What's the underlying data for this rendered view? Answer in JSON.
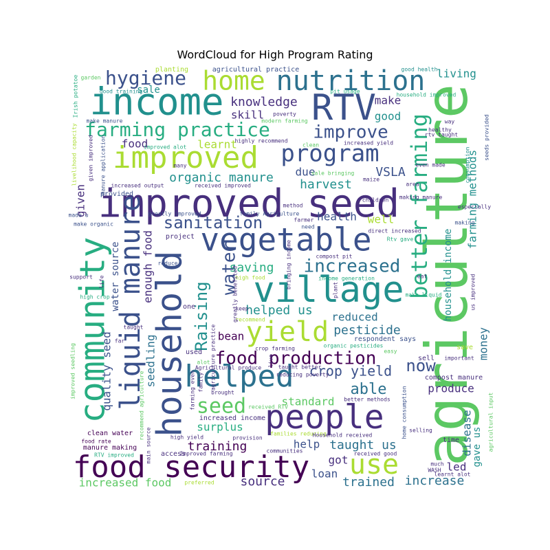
{
  "chart_data": {
    "type": "wordcloud",
    "title": "WordCloud for High Program Rating",
    "palette": [
      "#440154",
      "#472f7d",
      "#3b518b",
      "#2c718e",
      "#21908d",
      "#27ad81",
      "#5cc863",
      "#aadc32",
      "#fde725"
    ],
    "words": [
      {
        "text": "agriculture",
        "weight": 100,
        "color": "#5cc863"
      },
      {
        "text": "improved seed",
        "weight": 92,
        "color": "#472f7d"
      },
      {
        "text": "income",
        "weight": 90,
        "color": "#21908d"
      },
      {
        "text": "household",
        "weight": 88,
        "color": "#3b518b"
      },
      {
        "text": "community",
        "weight": 86,
        "color": "#27ad81"
      },
      {
        "text": "village",
        "weight": 84,
        "color": "#21908d"
      },
      {
        "text": "people",
        "weight": 80,
        "color": "#472f7d"
      },
      {
        "text": "RTV",
        "weight": 78,
        "color": "#3b518b"
      },
      {
        "text": "vegetable",
        "weight": 76,
        "color": "#3b518b"
      },
      {
        "text": "food security",
        "weight": 74,
        "color": "#440154"
      },
      {
        "text": "improved",
        "weight": 72,
        "color": "#aadc32"
      },
      {
        "text": "helped",
        "weight": 70,
        "color": "#2c718e"
      },
      {
        "text": "liquid manure",
        "weight": 68,
        "color": "#3b518b"
      },
      {
        "text": "nutrition",
        "weight": 66,
        "color": "#2c718e"
      },
      {
        "text": "program",
        "weight": 64,
        "color": "#3b518b"
      },
      {
        "text": "home",
        "weight": 62,
        "color": "#aadc32"
      },
      {
        "text": "yield",
        "weight": 60,
        "color": "#aadc32"
      },
      {
        "text": "better farming",
        "weight": 58,
        "color": "#27ad81"
      },
      {
        "text": "use",
        "weight": 56,
        "color": "#aadc32"
      },
      {
        "text": "farming practice",
        "weight": 54,
        "color": "#27ad81"
      },
      {
        "text": "food production",
        "weight": 52,
        "color": "#440154"
      },
      {
        "text": "hygiene",
        "weight": 50,
        "color": "#3b518b"
      },
      {
        "text": "seed",
        "weight": 48,
        "color": "#5cc863"
      },
      {
        "text": "sanitation",
        "weight": 46,
        "color": "#3b518b"
      },
      {
        "text": "increased",
        "weight": 44,
        "color": "#2c718e"
      },
      {
        "text": "improve",
        "weight": 42,
        "color": "#3b518b"
      },
      {
        "text": "water",
        "weight": 41,
        "color": "#3b518b"
      },
      {
        "text": "Raising",
        "weight": 40,
        "color": "#21908d"
      },
      {
        "text": "now",
        "weight": 39,
        "color": "#3b518b"
      },
      {
        "text": "able",
        "weight": 38,
        "color": "#2c718e"
      },
      {
        "text": "crop yield",
        "weight": 37,
        "color": "#3b518b"
      },
      {
        "text": "knowledge",
        "weight": 36,
        "color": "#472f7d"
      },
      {
        "text": "make",
        "weight": 35,
        "color": "#472f7d"
      },
      {
        "text": "good",
        "weight": 34,
        "color": "#21908d"
      },
      {
        "text": "skill",
        "weight": 33,
        "color": "#472f7d"
      },
      {
        "text": "organic manure",
        "weight": 32,
        "color": "#21908d"
      },
      {
        "text": "harvest",
        "weight": 31,
        "color": "#21908d"
      },
      {
        "text": "VSLA",
        "weight": 30,
        "color": "#3b518b"
      },
      {
        "text": "due",
        "weight": 30,
        "color": "#3b518b"
      },
      {
        "text": "health",
        "weight": 29,
        "color": "#3b518b"
      },
      {
        "text": "well",
        "weight": 29,
        "color": "#aadc32"
      },
      {
        "text": "saving",
        "weight": 28,
        "color": "#27ad81"
      },
      {
        "text": "helped us",
        "weight": 28,
        "color": "#21908d"
      },
      {
        "text": "reduced",
        "weight": 27,
        "color": "#2c718e"
      },
      {
        "text": "pesticide",
        "weight": 27,
        "color": "#2c718e"
      },
      {
        "text": "bean",
        "weight": 26,
        "color": "#440154"
      },
      {
        "text": "training",
        "weight": 26,
        "color": "#440154"
      },
      {
        "text": "surplus",
        "weight": 25,
        "color": "#27ad81"
      },
      {
        "text": "help",
        "weight": 25,
        "color": "#3b518b"
      },
      {
        "text": "taught us",
        "weight": 25,
        "color": "#2c718e"
      },
      {
        "text": "source",
        "weight": 24,
        "color": "#472f7d"
      },
      {
        "text": "loan",
        "weight": 24,
        "color": "#3b518b"
      },
      {
        "text": "trained",
        "weight": 24,
        "color": "#2c718e"
      },
      {
        "text": "increase",
        "weight": 24,
        "color": "#2c718e"
      },
      {
        "text": "increased food",
        "weight": 23,
        "color": "#5cc863"
      },
      {
        "text": "got",
        "weight": 23,
        "color": "#472f7d"
      },
      {
        "text": "produce",
        "weight": 22,
        "color": "#472f7d"
      },
      {
        "text": "standard",
        "weight": 22,
        "color": "#5cc863"
      },
      {
        "text": "living",
        "weight": 22,
        "color": "#21908d"
      },
      {
        "text": "learnt",
        "weight": 21,
        "color": "#aadc32"
      },
      {
        "text": "food",
        "weight": 21,
        "color": "#472f7d"
      },
      {
        "text": "sale",
        "weight": 21,
        "color": "#21908d"
      },
      {
        "text": "given",
        "weight": 20,
        "color": "#472f7d"
      },
      {
        "text": "quality seed",
        "weight": 20,
        "color": "#3b518b"
      },
      {
        "text": "water source",
        "weight": 20,
        "color": "#3b518b"
      },
      {
        "text": "enough food",
        "weight": 20,
        "color": "#472f7d"
      },
      {
        "text": "seedling",
        "weight": 19,
        "color": "#2c718e"
      },
      {
        "text": "farming methods",
        "weight": 19,
        "color": "#21908d"
      },
      {
        "text": "household income",
        "weight": 18,
        "color": "#21908d"
      },
      {
        "text": "money",
        "weight": 18,
        "color": "#2c718e"
      },
      {
        "text": "disease",
        "weight": 18,
        "color": "#2c718e"
      },
      {
        "text": "gave us",
        "weight": 17,
        "color": "#21908d"
      },
      {
        "text": "led",
        "weight": 16,
        "color": "#472f7d"
      },
      {
        "text": "planting",
        "weight": 10,
        "color": "#aadc32"
      },
      {
        "text": "agricultural practice",
        "weight": 10,
        "color": "#3b518b"
      },
      {
        "text": "good health",
        "weight": 10,
        "color": "#21908d"
      },
      {
        "text": "household improved",
        "weight": 10,
        "color": "#27ad81"
      },
      {
        "text": "Irish potatoe",
        "weight": 10,
        "color": "#27ad81"
      },
      {
        "text": "garden",
        "weight": 10,
        "color": "#5cc863"
      },
      {
        "text": "good training",
        "weight": 10,
        "color": "#21908d"
      },
      {
        "text": "pit usage",
        "weight": 10,
        "color": "#27ad81"
      },
      {
        "text": "poverty",
        "weight": 10,
        "color": "#472f7d"
      },
      {
        "text": "modern farming",
        "weight": 10,
        "color": "#5cc863"
      },
      {
        "text": "make manure",
        "weight": 10,
        "color": "#3b518b"
      },
      {
        "text": "highly recommend",
        "weight": 10,
        "color": "#472f7d"
      },
      {
        "text": "increased yield",
        "weight": 10,
        "color": "#472f7d"
      },
      {
        "text": "way",
        "weight": 10,
        "color": "#472f7d"
      },
      {
        "text": "healthy",
        "weight": 10,
        "color": "#472f7d"
      },
      {
        "text": "rtv taught",
        "weight": 10,
        "color": "#472f7d"
      },
      {
        "text": "seeds provided",
        "weight": 10,
        "color": "#3b518b"
      },
      {
        "text": "pig",
        "weight": 10,
        "color": "#5cc863"
      },
      {
        "text": "improved alot",
        "weight": 10,
        "color": "#27ad81"
      },
      {
        "text": "clean",
        "weight": 10,
        "color": "#5cc863"
      },
      {
        "text": "many",
        "weight": 10,
        "color": "#472f7d"
      },
      {
        "text": "even made",
        "weight": 10,
        "color": "#472f7d"
      },
      {
        "text": "given improved",
        "weight": 10,
        "color": "#472f7d"
      },
      {
        "text": "manure application",
        "weight": 10,
        "color": "#3b518b"
      },
      {
        "text": "sale bringing",
        "weight": 10,
        "color": "#5cc863"
      },
      {
        "text": "maize",
        "weight": 10,
        "color": "#472f7d"
      },
      {
        "text": "area",
        "weight": 10,
        "color": "#472f7d"
      },
      {
        "text": "consumption",
        "weight": 10,
        "color": "#21908d"
      },
      {
        "text": "increased output",
        "weight": 10,
        "color": "#472f7d"
      },
      {
        "text": "received improved",
        "weight": 10,
        "color": "#472f7d"
      },
      {
        "text": "making manure",
        "weight": 10,
        "color": "#472f7d"
      },
      {
        "text": "especially",
        "weight": 10,
        "color": "#472f7d"
      },
      {
        "text": "provided",
        "weight": 10,
        "color": "#3b518b"
      },
      {
        "text": "method",
        "weight": 10,
        "color": "#472f7d"
      },
      {
        "text": "greatly improved",
        "weight": 10,
        "color": "#3b518b"
      },
      {
        "text": "family Agriculture",
        "weight": 10,
        "color": "#3b518b"
      },
      {
        "text": "make organic",
        "weight": 10,
        "color": "#3b518b"
      },
      {
        "text": "made u",
        "weight": 10,
        "color": "#3b518b"
      },
      {
        "text": "making",
        "weight": 10,
        "color": "#3b518b"
      },
      {
        "text": "need",
        "weight": 10,
        "color": "#3b518b"
      },
      {
        "text": "project",
        "weight": 10,
        "color": "#472f7d"
      },
      {
        "text": "direct increased",
        "weight": 10,
        "color": "#472f7d"
      },
      {
        "text": "Rtv gave",
        "weight": 10,
        "color": "#27ad81"
      },
      {
        "text": "reduce",
        "weight": 10,
        "color": "#3b518b"
      },
      {
        "text": "compost pit",
        "weight": 10,
        "color": "#472f7d"
      },
      {
        "text": "income generation",
        "weight": 10,
        "color": "#27ad81"
      },
      {
        "text": "eat",
        "weight": 10,
        "color": "#472f7d"
      },
      {
        "text": "support",
        "weight": 10,
        "color": "#472f7d"
      },
      {
        "text": "life",
        "weight": 10,
        "color": "#472f7d"
      },
      {
        "text": "high food",
        "weight": 10,
        "color": "#aadc32"
      },
      {
        "text": "make liquid",
        "weight": 10,
        "color": "#27ad81"
      },
      {
        "text": "high crop",
        "weight": 10,
        "color": "#27ad81"
      },
      {
        "text": "plant",
        "weight": 10,
        "color": "#472f7d"
      },
      {
        "text": "us improved",
        "weight": 10,
        "color": "#472f7d"
      },
      {
        "text": "one",
        "weight": 10,
        "color": "#472f7d"
      },
      {
        "text": "keep",
        "weight": 10,
        "color": "#472f7d"
      },
      {
        "text": "taught",
        "weight": 10,
        "color": "#472f7d"
      },
      {
        "text": "recommend",
        "weight": 10,
        "color": "#aadc32"
      },
      {
        "text": "respondent says",
        "weight": 10,
        "color": "#3b518b"
      },
      {
        "text": "far",
        "weight": 10,
        "color": "#472f7d"
      },
      {
        "text": "organic pesticides",
        "weight": 10,
        "color": "#27ad81"
      },
      {
        "text": "save",
        "weight": 10,
        "color": "#aadc32"
      },
      {
        "text": "easy",
        "weight": 10,
        "color": "#5cc863"
      },
      {
        "text": "crop farming",
        "weight": 10,
        "color": "#472f7d"
      },
      {
        "text": "sell",
        "weight": 10,
        "color": "#472f7d"
      },
      {
        "text": "important",
        "weight": 10,
        "color": "#472f7d"
      },
      {
        "text": "used",
        "weight": 10,
        "color": "#472f7d"
      },
      {
        "text": "alot",
        "weight": 10,
        "color": "#5cc863"
      },
      {
        "text": "taught better",
        "weight": 10,
        "color": "#472f7d"
      },
      {
        "text": "compost manure",
        "weight": 10,
        "color": "#472f7d"
      },
      {
        "text": "improved seedling",
        "weight": 10,
        "color": "#5cc863"
      },
      {
        "text": "Agricultural produce",
        "weight": 10,
        "color": "#472f7d"
      },
      {
        "text": "reducing poverty",
        "weight": 10,
        "color": "#472f7d"
      },
      {
        "text": "better methods",
        "weight": 10,
        "color": "#472f7d"
      },
      {
        "text": "family",
        "weight": 10,
        "color": "#472f7d"
      },
      {
        "text": "recommend agriculture",
        "weight": 10,
        "color": "#5cc863"
      },
      {
        "text": "increased income",
        "weight": 10,
        "color": "#472f7d"
      },
      {
        "text": "home consumption",
        "weight": 10,
        "color": "#3b518b"
      },
      {
        "text": "received RTV",
        "weight": 10,
        "color": "#5cc863"
      },
      {
        "text": "agricultural input",
        "weight": 10,
        "color": "#5cc863"
      },
      {
        "text": "selling",
        "weight": 10,
        "color": "#472f7d"
      },
      {
        "text": "manure making",
        "weight": 10,
        "color": "#440154"
      },
      {
        "text": "clean water",
        "weight": 10,
        "color": "#440154"
      },
      {
        "text": "families reducing",
        "weight": 10,
        "color": "#aadc32"
      },
      {
        "text": "time",
        "weight": 10,
        "color": "#472f7d"
      },
      {
        "text": "food rate",
        "weight": 10,
        "color": "#440154"
      },
      {
        "text": "high yield",
        "weight": 10,
        "color": "#472f7d"
      },
      {
        "text": "provision",
        "weight": 10,
        "color": "#472f7d"
      },
      {
        "text": "Household received",
        "weight": 10,
        "color": "#472f7d"
      },
      {
        "text": "RTV improved",
        "weight": 10,
        "color": "#27ad81"
      },
      {
        "text": "access",
        "weight": 10,
        "color": "#472f7d"
      },
      {
        "text": "Improved farming",
        "weight": 10,
        "color": "#472f7d"
      },
      {
        "text": "communities",
        "weight": 10,
        "color": "#472f7d"
      },
      {
        "text": "received good",
        "weight": 10,
        "color": "#472f7d"
      },
      {
        "text": "WASH",
        "weight": 10,
        "color": "#472f7d"
      },
      {
        "text": "much",
        "weight": 10,
        "color": "#472f7d"
      },
      {
        "text": "learnt alot",
        "weight": 10,
        "color": "#472f7d"
      },
      {
        "text": "main source",
        "weight": 10,
        "color": "#472f7d"
      },
      {
        "text": "preferred",
        "weight": 10,
        "color": "#aadc32"
      },
      {
        "text": "brought",
        "weight": 10,
        "color": "#472f7d"
      },
      {
        "text": "livelihood capacity",
        "weight": 10,
        "color": "#aadc32"
      },
      {
        "text": "farmer",
        "weight": 10,
        "color": "#472f7d"
      },
      {
        "text": "children",
        "weight": 10,
        "color": "#472f7d"
      },
      {
        "text": "bringing income",
        "weight": 10,
        "color": "#472f7d"
      },
      {
        "text": "greatly benefited",
        "weight": 10,
        "color": "#472f7d"
      },
      {
        "text": "agriculture practice",
        "weight": 10,
        "color": "#472f7d"
      },
      {
        "text": "farming even",
        "weight": 10,
        "color": "#472f7d"
      },
      {
        "text": "live",
        "weight": 10,
        "color": "#472f7d"
      }
    ]
  }
}
